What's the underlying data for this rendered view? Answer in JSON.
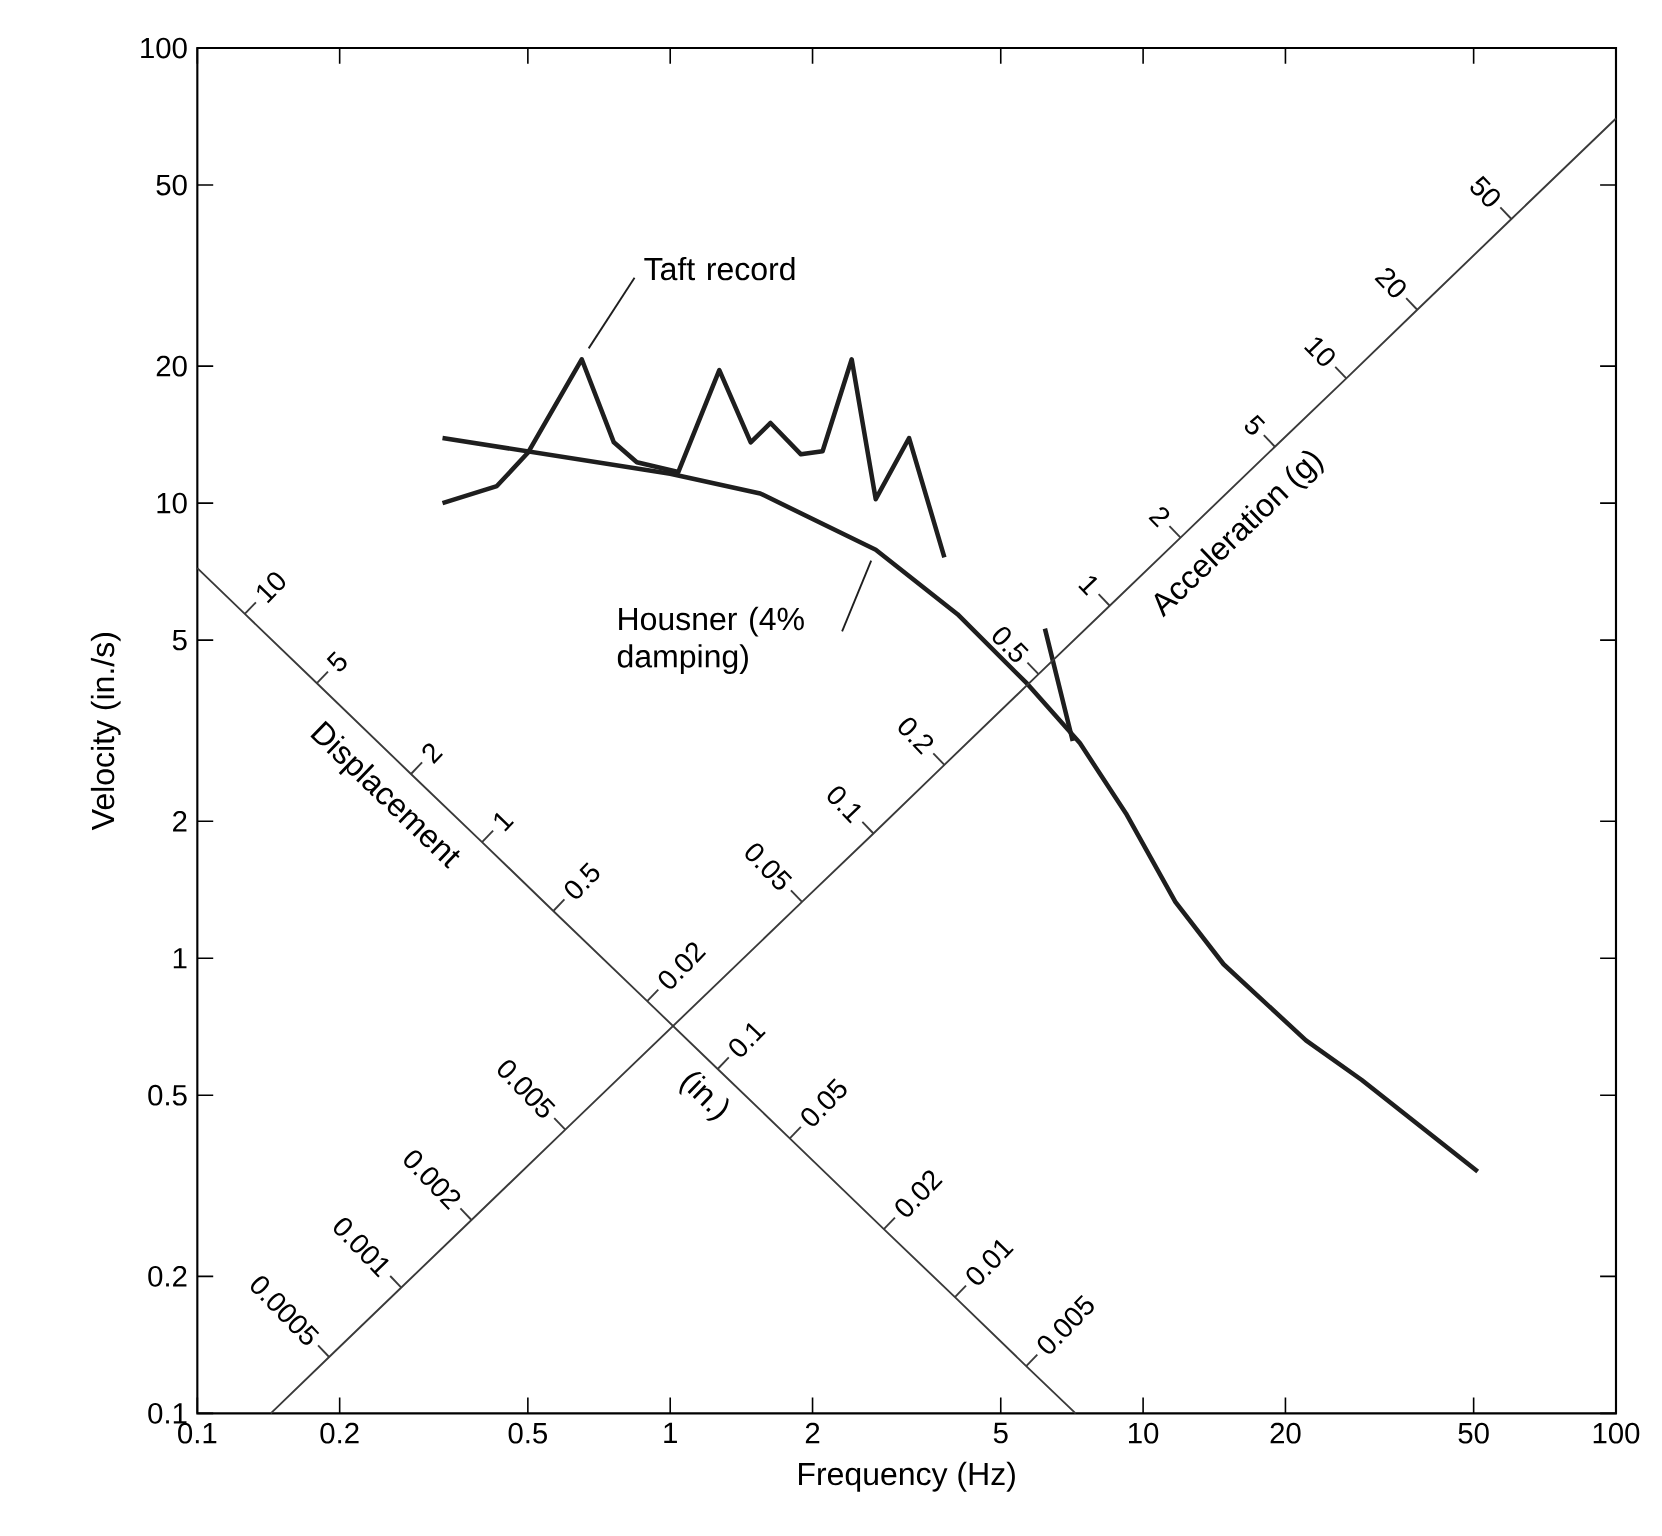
{
  "chart_data": {
    "type": "line",
    "xlabel": "Frequency (Hz)",
    "ylabel": "Velocity (in./s)",
    "log": "xy",
    "marker": "none",
    "xlim": [
      0.1,
      100
    ],
    "ylim": [
      0.1,
      100
    ],
    "xticks": [
      0.1,
      0.2,
      0.5,
      1,
      2,
      5,
      10,
      20,
      50,
      100
    ],
    "yticks": [
      0.1,
      0.2,
      0.5,
      1,
      2,
      5,
      10,
      20,
      50,
      100
    ],
    "series": [
      {
        "name": "Taft record",
        "color": "#1e1e1e",
        "x": [
          0.33,
          0.43,
          0.5,
          0.65,
          0.76,
          0.85,
          1.04,
          1.27,
          1.48,
          1.63,
          1.89,
          2.1,
          2.42,
          2.72,
          3.2,
          3.8,
          5.0,
          6.2,
          7.1
        ],
        "values": [
          10,
          10.9,
          12.9,
          20.7,
          13.6,
          12.3,
          11.7,
          19.6,
          13.6,
          15,
          12.8,
          13,
          20.7,
          10.2,
          13.9,
          7.6,
          null,
          5.3,
          3.0
        ]
      },
      {
        "name": "Housner (4% damping)",
        "color": "#1e1e1e",
        "x": [
          0.33,
          1.0,
          1.55,
          2.72,
          4.05,
          5.7,
          7.35,
          9.2,
          11.7,
          14.8,
          22.1,
          29,
          51
        ],
        "values": [
          13.9,
          11.6,
          10.5,
          7.9,
          5.7,
          4.0,
          2.97,
          2.08,
          1.33,
          0.97,
          0.66,
          0.54,
          0.34
        ]
      },
      {
        "color": "#3a3a3a",
        "x": [
          0.1,
          0.126,
          0.179,
          0.283,
          0.4,
          0.566,
          0.894,
          1.26,
          1.79,
          2.83,
          4.0,
          5.66,
          7.2
        ],
        "values": [
          7.2,
          5.71,
          4.02,
          2.54,
          1.8,
          1.27,
          0.805,
          0.571,
          0.402,
          0.254,
          0.18,
          0.127,
          0.1
        ]
      },
      {
        "color": "#3a3a3a",
        "x": [
          0.143,
          0.19,
          0.27,
          0.38,
          0.6,
          1.9,
          2.69,
          3.8,
          6.01,
          8.5,
          12.0,
          19.0,
          26.9,
          38.0,
          60.1,
          100
        ],
        "values": [
          0.1,
          0.133,
          0.189,
          0.266,
          0.42,
          1.33,
          1.88,
          2.66,
          4.21,
          5.95,
          8.4,
          13.3,
          18.8,
          26.6,
          42.1,
          70
        ]
      }
    ],
    "annotations": [
      "Displacement",
      "(in.)",
      "Acceleration (g)",
      "10",
      "5",
      "2",
      "1",
      "0.5",
      "0.02",
      "0.1",
      "0.05",
      "0.02",
      "0.01",
      "0.005",
      "0.0005",
      "0.001",
      "0.002",
      "0.005",
      "0.05",
      "0.1",
      "0.2",
      "0.5",
      "1",
      "2",
      "5",
      "10",
      "20",
      "50"
    ]
  }
}
